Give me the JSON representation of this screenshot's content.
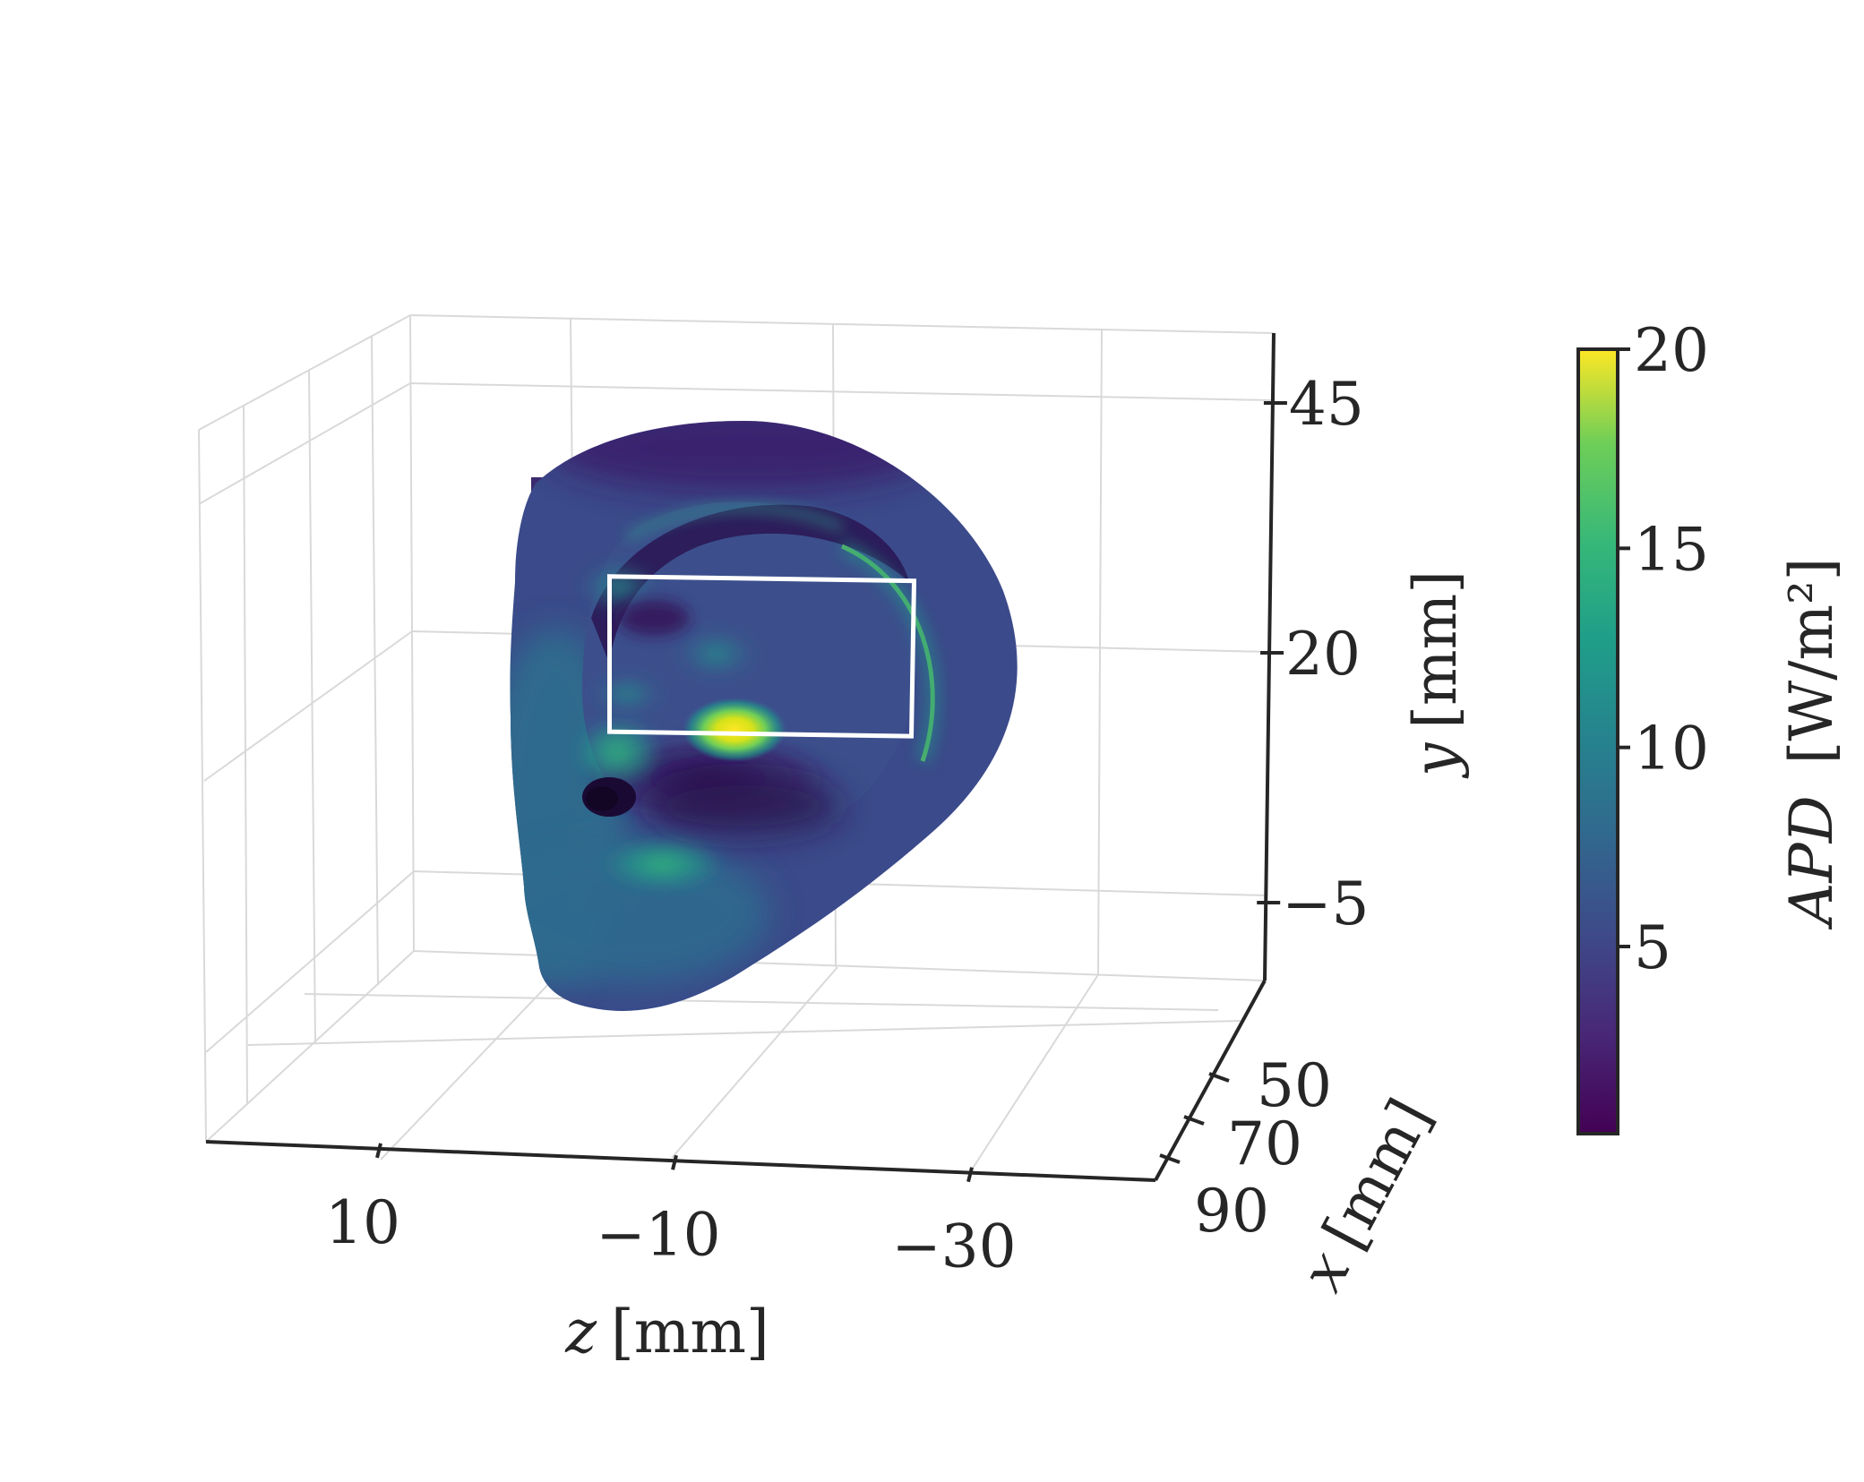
{
  "chart_data": {
    "type": "surface3d",
    "colormap": "viridis",
    "axes": {
      "z": {
        "label_var": "z",
        "label_unit": "[mm]",
        "ticks": [
          10,
          -10,
          -30
        ],
        "tick_labels": [
          "10",
          "−10",
          "−30"
        ]
      },
      "y": {
        "label_var": "y",
        "label_unit": "[mm]",
        "ticks": [
          45,
          20,
          -5
        ],
        "tick_labels": [
          "45",
          "20",
          "−5"
        ]
      },
      "x": {
        "label_var": "x",
        "label_unit": "[mm]",
        "ticks": [
          50,
          70,
          90
        ],
        "tick_labels": [
          "50",
          "70",
          "90"
        ]
      }
    },
    "colorbar": {
      "label_var": "APD",
      "label_unit": "[W/m²]",
      "range": [
        0.3,
        20
      ],
      "ticks": [
        5,
        10,
        15,
        20
      ],
      "tick_labels": [
        "5",
        "10",
        "15",
        "20"
      ]
    },
    "hotspot": {
      "value": 20,
      "z": -7,
      "y": 17
    },
    "highlight_box": {
      "z_range": [
        -7,
        -27
      ],
      "y_range": [
        13,
        28
      ],
      "color": "#ffffff"
    },
    "grid": true,
    "colors": {
      "background_surface": "#3b4a8a",
      "dark_region": "#35185a",
      "mid_region": "#2b6f8f",
      "bright_region": "#fde725",
      "axis": "#262626"
    }
  }
}
